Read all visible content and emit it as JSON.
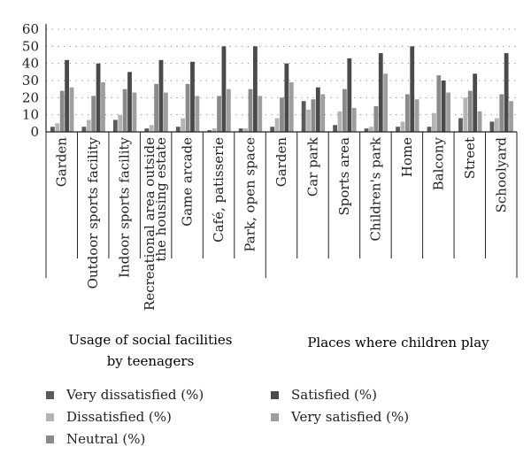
{
  "chart_data": {
    "type": "bar",
    "ylim": [
      0,
      60
    ],
    "yticks": [
      0,
      10,
      20,
      30,
      40,
      50,
      60
    ],
    "grid": "dotted horizontal",
    "categories": [
      "Garden",
      "Outdoor sports facility",
      "Indoor sports facility",
      "Recreational area outside the housing estate",
      "Game arcade",
      "Café, patisserie",
      "Park, open space",
      "Garden",
      "Car park",
      "Sports area",
      "Children's park",
      "Home",
      "Balcony",
      "Street",
      "Schoolyard"
    ],
    "category_lines": [
      [
        "Garden"
      ],
      [
        "Outdoor sports facility"
      ],
      [
        "Indoor sports facility"
      ],
      [
        "Recreational area outside",
        "the housing estate"
      ],
      [
        "Game arcade"
      ],
      [
        "Café, patisserie"
      ],
      [
        "Park, open space"
      ],
      [
        "Garden"
      ],
      [
        "Car park"
      ],
      [
        "Sports area"
      ],
      [
        "Children's park"
      ],
      [
        "Home"
      ],
      [
        "Balcony"
      ],
      [
        "Street"
      ],
      [
        "Schoolyard"
      ]
    ],
    "groups": [
      {
        "label": "Usage of social facilities by teenagers",
        "lines": [
          "Usage of social facilities",
          "by teenagers"
        ],
        "count": 7
      },
      {
        "label": "Places where children play",
        "lines": [
          "Places where children play"
        ],
        "count": 8
      }
    ],
    "series": [
      {
        "name": "Very dissatisfied (%)",
        "color": "#5a5a5a",
        "values": [
          3,
          3,
          7,
          2,
          3,
          1,
          2,
          3,
          18,
          4,
          2,
          3,
          3,
          8,
          6
        ]
      },
      {
        "name": "Dissatisfied (%)",
        "color": "#b4b4b4",
        "values": [
          5,
          7,
          10,
          4,
          8,
          2,
          2,
          8,
          13,
          12,
          3,
          6,
          11,
          20,
          8
        ]
      },
      {
        "name": "Neutral (%)",
        "color": "#8a8a8a",
        "values": [
          24,
          21,
          25,
          28,
          28,
          21,
          25,
          20,
          19,
          25,
          15,
          22,
          33,
          24,
          22
        ]
      },
      {
        "name": "Satisfied (%)",
        "color": "#4a4a4a",
        "values": [
          42,
          40,
          35,
          42,
          41,
          50,
          50,
          40,
          26,
          43,
          46,
          50,
          30,
          34,
          46
        ]
      },
      {
        "name": "Very satisfied (%)",
        "color": "#9e9e9e",
        "values": [
          26,
          29,
          23,
          23,
          21,
          25,
          21,
          29,
          22,
          14,
          34,
          19,
          23,
          12,
          18
        ]
      }
    ]
  },
  "legend": {
    "left": [
      "Very dissatisfied (%)",
      "Dissatisfied (%)",
      "Neutral (%)"
    ],
    "right": [
      "Satisfied (%)",
      "Very satisfied (%)"
    ]
  }
}
